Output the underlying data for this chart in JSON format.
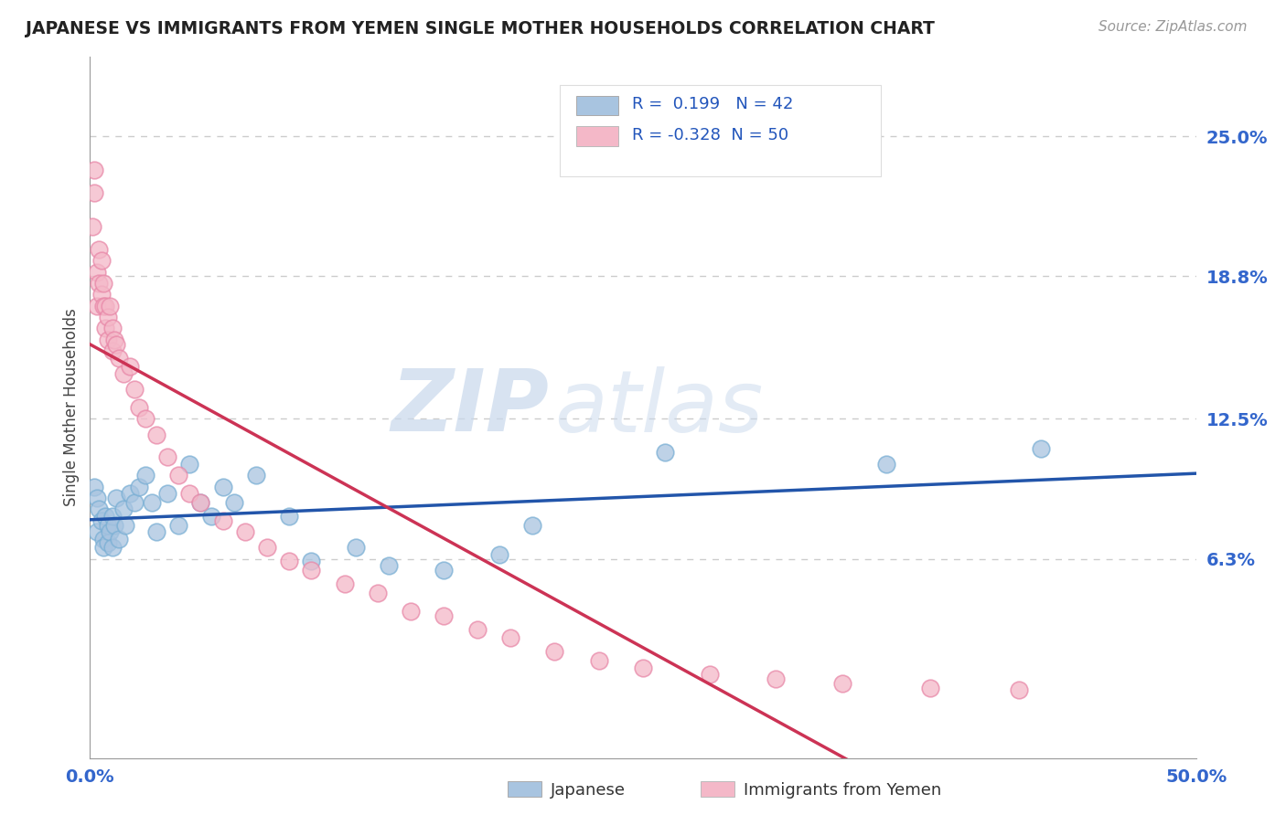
{
  "title": "JAPANESE VS IMMIGRANTS FROM YEMEN SINGLE MOTHER HOUSEHOLDS CORRELATION CHART",
  "source_text": "Source: ZipAtlas.com",
  "ylabel": "Single Mother Households",
  "xlim": [
    0.0,
    0.5
  ],
  "ylim": [
    -0.025,
    0.285
  ],
  "ytick_labels_right": [
    "6.3%",
    "12.5%",
    "18.8%",
    "25.0%"
  ],
  "ytick_positions_right": [
    0.063,
    0.125,
    0.188,
    0.25
  ],
  "background_color": "#ffffff",
  "japanese_color": "#a8c4e0",
  "japanese_edge_color": "#7aafd4",
  "japanese_line_color": "#2255aa",
  "yemen_color": "#f4b8c8",
  "yemen_edge_color": "#e888a8",
  "yemen_line_color": "#cc3355",
  "R_japanese": 0.199,
  "N_japanese": 42,
  "R_yemen": -0.328,
  "N_yemen": 50,
  "watermark_zip": "ZIP",
  "watermark_atlas": "atlas",
  "bottom_legend_japanese": "Japanese",
  "bottom_legend_yemen": "Immigrants from Yemen",
  "japanese_scatter_x": [
    0.002,
    0.003,
    0.003,
    0.004,
    0.005,
    0.006,
    0.006,
    0.007,
    0.008,
    0.008,
    0.009,
    0.01,
    0.01,
    0.011,
    0.012,
    0.013,
    0.015,
    0.016,
    0.018,
    0.02,
    0.022,
    0.025,
    0.028,
    0.03,
    0.035,
    0.04,
    0.045,
    0.05,
    0.055,
    0.06,
    0.065,
    0.075,
    0.09,
    0.1,
    0.12,
    0.135,
    0.16,
    0.185,
    0.2,
    0.26,
    0.36,
    0.43
  ],
  "japanese_scatter_y": [
    0.095,
    0.09,
    0.075,
    0.085,
    0.08,
    0.072,
    0.068,
    0.082,
    0.078,
    0.07,
    0.075,
    0.082,
    0.068,
    0.078,
    0.09,
    0.072,
    0.085,
    0.078,
    0.092,
    0.088,
    0.095,
    0.1,
    0.088,
    0.075,
    0.092,
    0.078,
    0.105,
    0.088,
    0.082,
    0.095,
    0.088,
    0.1,
    0.082,
    0.062,
    0.068,
    0.06,
    0.058,
    0.065,
    0.078,
    0.11,
    0.105,
    0.112
  ],
  "yemen_scatter_x": [
    0.001,
    0.002,
    0.002,
    0.003,
    0.003,
    0.004,
    0.004,
    0.005,
    0.005,
    0.006,
    0.006,
    0.007,
    0.007,
    0.008,
    0.008,
    0.009,
    0.01,
    0.01,
    0.011,
    0.012,
    0.013,
    0.015,
    0.018,
    0.02,
    0.022,
    0.025,
    0.03,
    0.035,
    0.04,
    0.045,
    0.05,
    0.06,
    0.07,
    0.08,
    0.09,
    0.1,
    0.115,
    0.13,
    0.145,
    0.16,
    0.175,
    0.19,
    0.21,
    0.23,
    0.25,
    0.28,
    0.31,
    0.34,
    0.38,
    0.42
  ],
  "yemen_scatter_y": [
    0.21,
    0.235,
    0.225,
    0.19,
    0.175,
    0.2,
    0.185,
    0.195,
    0.18,
    0.175,
    0.185,
    0.165,
    0.175,
    0.17,
    0.16,
    0.175,
    0.165,
    0.155,
    0.16,
    0.158,
    0.152,
    0.145,
    0.148,
    0.138,
    0.13,
    0.125,
    0.118,
    0.108,
    0.1,
    0.092,
    0.088,
    0.08,
    0.075,
    0.068,
    0.062,
    0.058,
    0.052,
    0.048,
    0.04,
    0.038,
    0.032,
    0.028,
    0.022,
    0.018,
    0.015,
    0.012,
    0.01,
    0.008,
    0.006,
    0.005
  ],
  "yemen_line_end_x": 0.35,
  "yemen_line_dashed_end_x": 0.5
}
